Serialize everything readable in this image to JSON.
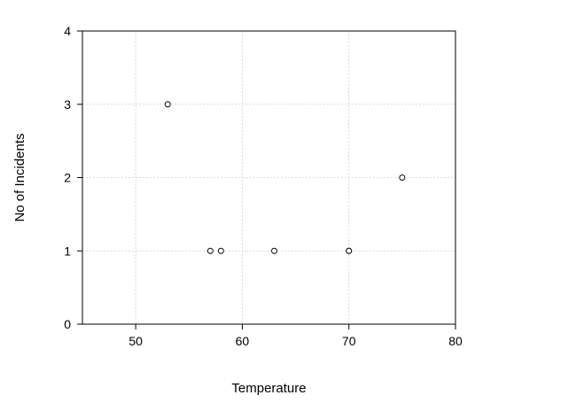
{
  "chart_data": {
    "type": "scatter",
    "xlabel": "Temperature",
    "ylabel": "No of Incidents",
    "xlim": [
      45,
      80
    ],
    "ylim": [
      0,
      4
    ],
    "xticks": [
      50,
      60,
      70,
      80
    ],
    "yticks": [
      0,
      1,
      2,
      3,
      4
    ],
    "grid": true,
    "x": [
      53,
      57,
      58,
      63,
      70,
      70,
      75
    ],
    "y": [
      3,
      1,
      1,
      1,
      1,
      1,
      2
    ]
  }
}
